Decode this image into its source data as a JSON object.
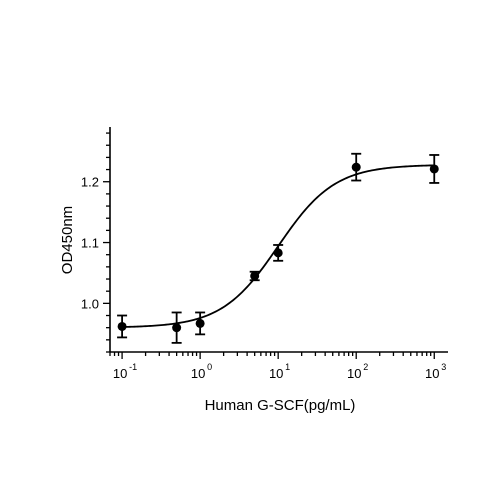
{
  "chart_data": {
    "type": "scatter",
    "xlabel": "Human G-SCF(pg/mL)",
    "ylabel": "OD450nm",
    "x_scale": "log",
    "xlim": [
      0.07,
      1500
    ],
    "ylim": [
      0.92,
      1.29
    ],
    "x_ticks": [
      {
        "value": 0.1,
        "base": "10",
        "exp": "-1"
      },
      {
        "value": 1,
        "base": "10",
        "exp": "0"
      },
      {
        "value": 10,
        "base": "10",
        "exp": "1"
      },
      {
        "value": 100,
        "base": "10",
        "exp": "2"
      },
      {
        "value": 1000,
        "base": "10",
        "exp": "3"
      }
    ],
    "y_ticks": [
      {
        "value": 1.0,
        "label": "1.0"
      },
      {
        "value": 1.1,
        "label": "1.1"
      },
      {
        "value": 1.2,
        "label": "1.2"
      }
    ],
    "grid": false,
    "series": [
      {
        "points": [
          {
            "x": 0.1,
            "y": 0.962,
            "err": 0.018
          },
          {
            "x": 0.5,
            "y": 0.96,
            "err": 0.025
          },
          {
            "x": 1,
            "y": 0.967,
            "err": 0.018
          },
          {
            "x": 5,
            "y": 1.045,
            "err": 0.007
          },
          {
            "x": 10,
            "y": 1.083,
            "err": 0.013
          },
          {
            "x": 100,
            "y": 1.224,
            "err": 0.022
          },
          {
            "x": 1000,
            "y": 1.221,
            "err": 0.023
          }
        ],
        "fit": {
          "model": "4PL",
          "bottom": 0.96,
          "top": 1.228,
          "ec50": 10,
          "hill": 1.2
        }
      }
    ]
  }
}
